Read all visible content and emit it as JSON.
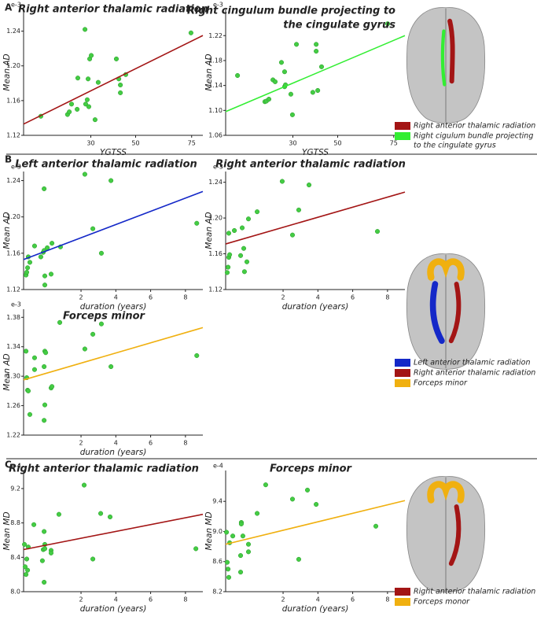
{
  "panel_labels": [
    "A",
    "B",
    "C"
  ],
  "chart_data": [
    {
      "type": "scatter",
      "title": "Right anterior thalamic radiation",
      "x_label": "YGTSS",
      "y_label": "Mean AD",
      "y_exponent": "e-3",
      "point_color": "#44cc44",
      "x": [
        7.7,
        19.6,
        20.4,
        21.4,
        23.9,
        24.2,
        27.4,
        27.7,
        28.4,
        28.8,
        29.1,
        29.5,
        30.2,
        31.9,
        33.3,
        41.4,
        42.5,
        43.2,
        43.2,
        45.6,
        74.7
      ],
      "values": [
        1.142,
        1.144,
        1.147,
        1.156,
        1.15,
        1.186,
        1.242,
        1.156,
        1.161,
        1.185,
        1.153,
        1.208,
        1.212,
        1.138,
        1.181,
        1.208,
        1.185,
        1.178,
        1.169,
        1.19,
        1.238
      ],
      "fit_line": {
        "x": [
          0,
          80
        ],
        "y": [
          1.133,
          1.235
        ],
        "color": "#a31515"
      },
      "xlim": [
        0,
        80
      ],
      "xticks": [
        30,
        50,
        75
      ],
      "ylim": [
        1.12,
        1.265
      ],
      "yticks": [
        1.12,
        1.16,
        {
          "value": 1.2,
          "label": "1.20"
        },
        1.24
      ]
    },
    {
      "type": "scatter",
      "title": [
        "Right cingulum bundle projecting to",
        "the cingulate gyrus"
      ],
      "x_label": "YGTSS",
      "y_label": "Mean AD",
      "y_exponent": "e-3",
      "point_color": "#44cc44",
      "x": [
        5.3,
        17.5,
        18.2,
        19.3,
        21.1,
        22.1,
        24.9,
        26.3,
        26.3,
        26.7,
        29.1,
        29.8,
        31.6,
        38.9,
        40.4,
        40.4,
        41.1,
        42.8,
        72.3
      ],
      "values": [
        1.156,
        1.114,
        1.115,
        1.118,
        1.149,
        1.146,
        1.177,
        1.162,
        1.138,
        1.141,
        1.126,
        1.093,
        1.206,
        1.129,
        1.206,
        1.195,
        1.132,
        1.17,
        1.239
      ],
      "fit_line": {
        "x": [
          0,
          80
        ],
        "y": [
          1.098,
          1.22
        ],
        "color": "#33ee33"
      },
      "xlim": [
        0,
        80
      ],
      "xticks": [
        30,
        50,
        75
      ],
      "ylim": [
        1.06,
        1.262
      ],
      "yticks": [
        1.06,
        {
          "value": 1.1,
          "label": "1.10"
        },
        1.14,
        1.18,
        1.22
      ]
    },
    {
      "type": "scatter",
      "title": "Left anterior thalamic radiation",
      "x_label": "duration (years)",
      "y_label": "Mean AD",
      "y_exponent": "e-3",
      "point_color": "#44cc44",
      "x": [
        -1.16,
        -1.12,
        -1.07,
        -1.03,
        -0.94,
        -0.67,
        -0.31,
        -0.17,
        -0.12,
        -0.12,
        -0.08,
        -0.08,
        0.06,
        0.28,
        0.33,
        0.82,
        2.22,
        2.68,
        3.17,
        3.72,
        8.65
      ],
      "values": [
        1.136,
        1.139,
        1.144,
        1.156,
        1.15,
        1.168,
        1.156,
        1.161,
        1.163,
        1.231,
        1.135,
        1.125,
        1.166,
        1.137,
        1.171,
        1.167,
        1.247,
        1.187,
        1.16,
        1.24,
        1.193
      ],
      "fit_line": {
        "x": [
          -1.3,
          9
        ],
        "y": [
          1.153,
          1.228
        ],
        "color": "#1428c8"
      },
      "xlim": [
        -1.3,
        9
      ],
      "xticks": [
        2,
        4,
        6,
        8
      ],
      "ylim": [
        1.12,
        1.25
      ],
      "yticks": [
        1.12,
        1.16,
        {
          "value": 1.2,
          "label": "1.20"
        },
        1.24
      ]
    },
    {
      "type": "scatter",
      "title": "Right anterior thalamic radiation",
      "x_label": "duration (years)",
      "y_label": "Mean AD",
      "y_exponent": "e-3",
      "point_color": "#44cc44",
      "x": [
        -1.21,
        -1.16,
        -1.12,
        -1.07,
        -1.12,
        -0.8,
        -0.44,
        -0.35,
        -0.26,
        -0.22,
        -0.08,
        0.01,
        0.51,
        1.95,
        2.54,
        2.9,
        3.49,
        7.42
      ],
      "values": [
        1.139,
        1.145,
        1.156,
        1.159,
        1.183,
        1.186,
        1.158,
        1.189,
        1.166,
        1.14,
        1.151,
        1.199,
        1.207,
        1.241,
        1.181,
        1.209,
        1.237,
        1.185
      ],
      "fit_line": {
        "x": [
          -1.3,
          9
        ],
        "y": [
          1.171,
          1.229
        ],
        "color": "#a31515"
      },
      "xlim": [
        -1.3,
        9
      ],
      "xticks": [
        2,
        4,
        6,
        8
      ],
      "ylim": [
        1.12,
        1.252
      ],
      "yticks": [
        1.12,
        1.16,
        {
          "value": 1.2,
          "label": "1.20"
        },
        1.24
      ]
    },
    {
      "type": "scatter",
      "title": "Forceps minor",
      "x_label": "duration (years)",
      "y_label": "Mean AD",
      "y_exponent": "e-3",
      "point_color": "#44cc44",
      "x": [
        -1.16,
        -1.12,
        -1.07,
        -1.03,
        -0.94,
        -0.67,
        -0.67,
        -0.12,
        -0.12,
        -0.08,
        -0.08,
        -0.03,
        0.28,
        0.33,
        0.78,
        2.22,
        2.68,
        3.17,
        3.72,
        8.65
      ],
      "values": [
        1.334,
        1.298,
        1.281,
        1.28,
        1.248,
        1.325,
        1.309,
        1.313,
        1.24,
        1.334,
        1.261,
        1.332,
        1.284,
        1.286,
        1.373,
        1.337,
        1.357,
        1.371,
        1.313,
        1.328
      ],
      "fit_line": {
        "x": [
          -1.3,
          9
        ],
        "y": [
          1.295,
          1.366
        ],
        "color": "#f0b010"
      },
      "xlim": [
        -1.3,
        9
      ],
      "xticks": [
        2,
        4,
        6,
        8
      ],
      "ylim": [
        1.22,
        1.391
      ],
      "yticks": [
        1.22,
        1.26,
        {
          "value": 1.3,
          "label": "1.30"
        },
        1.34,
        1.38
      ]
    },
    {
      "type": "scatter",
      "title": "Right anterior thalamic radiation",
      "x_label": "duration (years)",
      "y_label": "Mean MD",
      "y_exponent": "e-4",
      "point_color": "#44cc44",
      "x": [
        -1.25,
        -1.21,
        -1.16,
        -1.12,
        -1.07,
        -1.03,
        -0.71,
        -0.22,
        -0.17,
        -0.12,
        -0.12,
        -0.08,
        -0.08,
        0.28,
        0.28,
        0.73,
        2.18,
        2.68,
        3.13,
        3.67,
        8.6
      ],
      "values": [
        8.55,
        8.29,
        8.2,
        8.38,
        8.25,
        8.52,
        8.78,
        8.36,
        8.49,
        8.7,
        8.11,
        8.5,
        8.55,
        8.48,
        8.45,
        8.9,
        9.24,
        8.38,
        8.91,
        8.87,
        8.5
      ],
      "fit_line": {
        "x": [
          -1.3,
          9
        ],
        "y": [
          8.49,
          8.9
        ],
        "color": "#a31515"
      },
      "xlim": [
        -1.3,
        9
      ],
      "xticks": [
        2,
        4,
        6,
        8
      ],
      "ylim": [
        8.0,
        9.41
      ],
      "yticks": [
        {
          "value": 8,
          "label": "8.0"
        },
        8.4,
        8.8,
        9.2
      ]
    },
    {
      "type": "scatter",
      "title": "Forceps minor",
      "x_label": "duration (years)",
      "y_label": "Mean MD",
      "y_exponent": "e-4",
      "point_color": "#44cc44",
      "x": [
        -1.25,
        -1.21,
        -1.16,
        -1.12,
        -1.07,
        -0.89,
        -0.44,
        -0.44,
        -0.4,
        -0.4,
        -0.31,
        0.01,
        0.01,
        0.51,
        1.0,
        2.54,
        2.9,
        3.4,
        3.9,
        7.33
      ],
      "values": [
        8.99,
        8.59,
        8.5,
        8.39,
        8.85,
        8.94,
        8.68,
        8.46,
        9.12,
        9.1,
        8.94,
        8.83,
        8.73,
        9.24,
        9.62,
        9.43,
        8.63,
        9.55,
        9.36,
        9.07
      ],
      "fit_line": {
        "x": [
          -1.3,
          9
        ],
        "y": [
          8.83,
          9.41
        ],
        "color": "#f0b010"
      },
      "xlim": [
        -1.3,
        9
      ],
      "xticks": [
        2,
        4,
        6,
        8
      ],
      "ylim": [
        8.2,
        9.81
      ],
      "yticks": [
        8.2,
        8.6,
        {
          "value": 9,
          "label": "9.0"
        },
        9.4
      ]
    }
  ],
  "legends": [
    {
      "entries": [
        {
          "label": "Right anterior thalamic radiation",
          "color": "#a31515"
        },
        {
          "label": [
            "Right cigulum bundle projecting",
            "to the cingulate gyrus"
          ],
          "color": "#33ee33"
        }
      ]
    },
    {
      "entries": [
        {
          "label": "Left anterior thalamic radiation",
          "color": "#1428c8"
        },
        {
          "label": "Right anterior thalamic radiation",
          "color": "#a31515"
        },
        {
          "label": "Forceps minor",
          "color": "#f0b010"
        }
      ]
    },
    {
      "entries": [
        {
          "label": "Right anterior thalamic radiation",
          "color": "#a31515"
        },
        {
          "label": "Forceps monor",
          "color": "#f0b010"
        }
      ]
    }
  ]
}
